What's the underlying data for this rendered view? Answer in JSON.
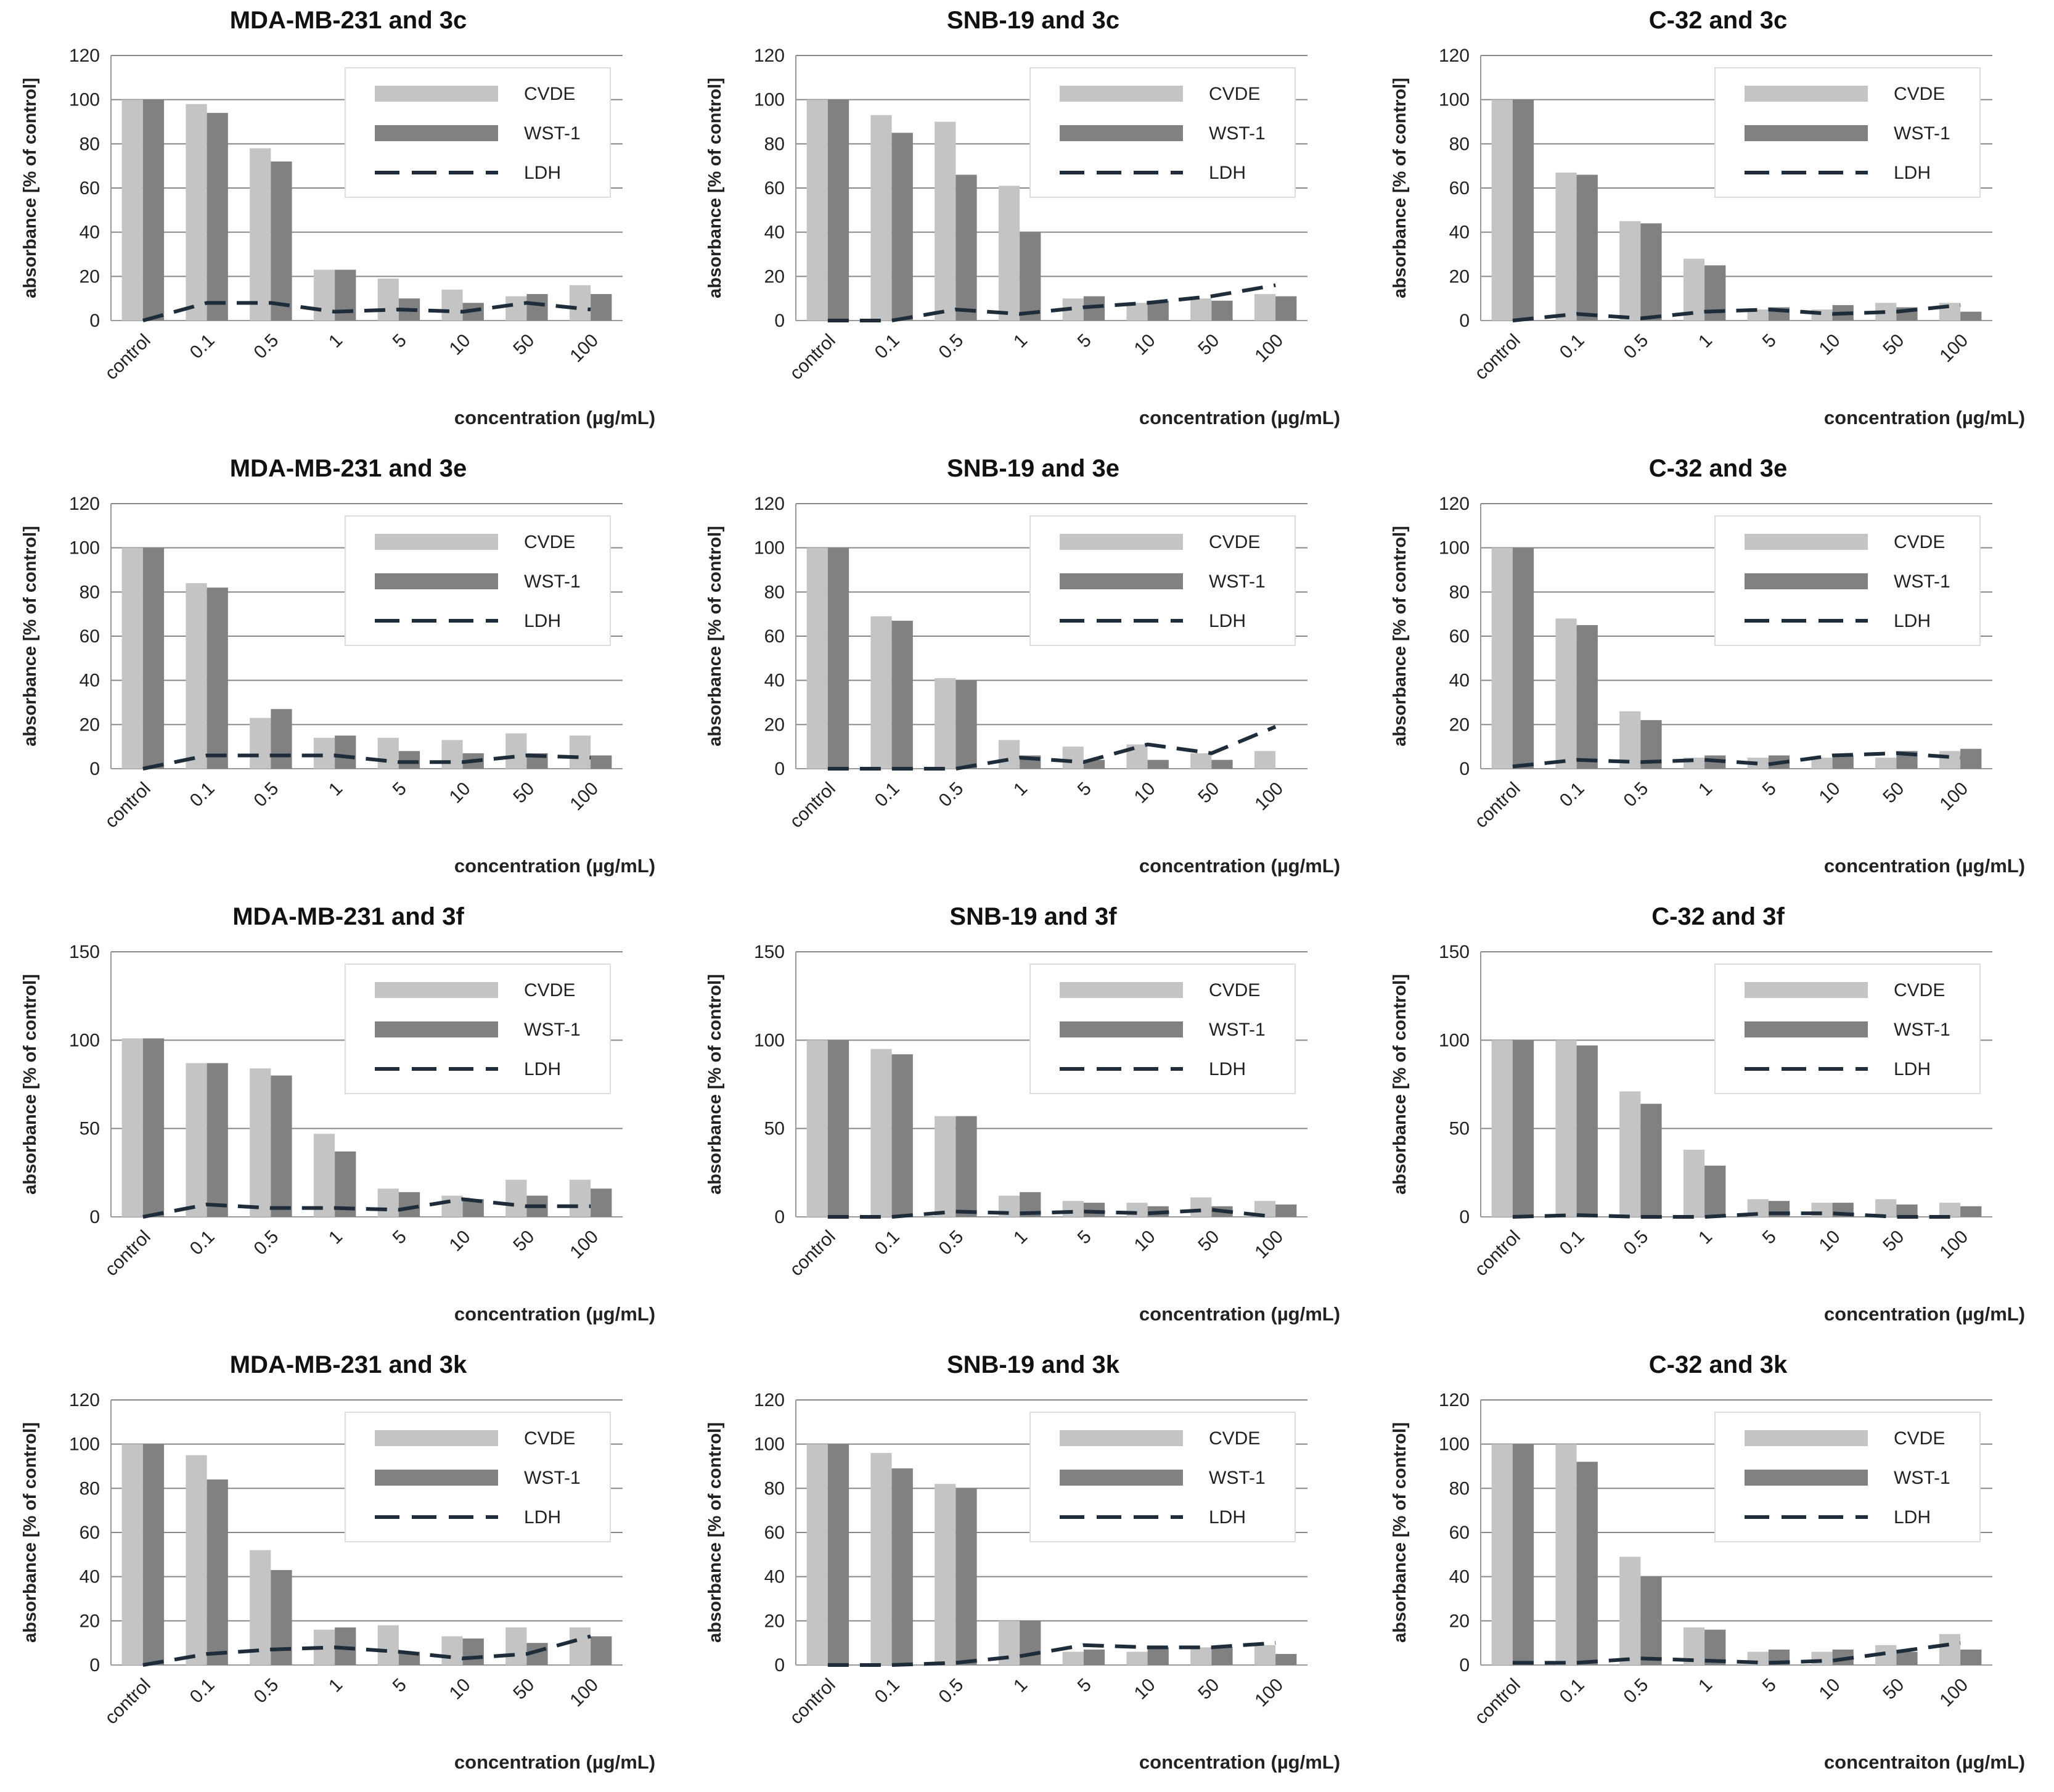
{
  "colors": {
    "cvde": "#c4c4c4",
    "wst1": "#818181",
    "ldh": "#1f2d3a",
    "grid": "#888888",
    "axis": "#999999"
  },
  "chart_data": [
    {
      "type": "bar",
      "title": "MDA-MB-231 and 3c",
      "categories": [
        "control",
        "0.1",
        "0.5",
        "1",
        "5",
        "10",
        "50",
        "100"
      ],
      "ylim": [
        0,
        120
      ],
      "yticks": [
        "0",
        "20",
        "40",
        "60",
        "80",
        "100",
        "120"
      ],
      "ytick_values": [
        0,
        20,
        40,
        60,
        80,
        100,
        120
      ],
      "xlabel": "concentration (µg/mL)",
      "ylabel": "absorbance [% of control]",
      "legend": [
        "CVDE",
        "WST-1",
        "LDH"
      ],
      "legend_position": "top-right",
      "series": [
        {
          "name": "CVDE",
          "kind": "bar",
          "values": [
            100,
            98,
            78,
            23,
            19,
            14,
            11,
            16
          ]
        },
        {
          "name": "WST-1",
          "kind": "bar",
          "values": [
            100,
            94,
            72,
            23,
            10,
            8,
            12,
            12
          ]
        },
        {
          "name": "LDH",
          "kind": "dashed-line",
          "values": [
            0,
            8,
            8,
            4,
            5,
            4,
            8,
            5
          ]
        }
      ]
    },
    {
      "type": "bar",
      "title": "SNB-19 and 3c",
      "categories": [
        "control",
        "0.1",
        "0.5",
        "1",
        "5",
        "10",
        "50",
        "100"
      ],
      "ylim": [
        0,
        120
      ],
      "yticks": [
        "0",
        "20",
        "40",
        "60",
        "80",
        "100",
        "120"
      ],
      "ytick_values": [
        0,
        20,
        40,
        60,
        80,
        100,
        120
      ],
      "xlabel": "concentration (µg/mL)",
      "ylabel": "absorbance [% of control]",
      "legend": [
        "CVDE",
        "WST-1",
        "LDH"
      ],
      "legend_position": "top-right",
      "series": [
        {
          "name": "CVDE",
          "kind": "bar",
          "values": [
            100,
            93,
            90,
            61,
            10,
            8,
            10,
            12
          ]
        },
        {
          "name": "WST-1",
          "kind": "bar",
          "values": [
            100,
            85,
            66,
            40,
            11,
            9,
            9,
            11
          ]
        },
        {
          "name": "LDH",
          "kind": "dashed-line",
          "values": [
            0,
            0,
            5,
            3,
            6,
            8,
            11,
            16
          ]
        }
      ]
    },
    {
      "type": "bar",
      "title": "C-32 and 3c",
      "categories": [
        "control",
        "0.1",
        "0.5",
        "1",
        "5",
        "10",
        "50",
        "100"
      ],
      "ylim": [
        0,
        120
      ],
      "yticks": [
        "0",
        "20",
        "40",
        "60",
        "80",
        "100",
        "120"
      ],
      "ytick_values": [
        0,
        20,
        40,
        60,
        80,
        100,
        120
      ],
      "xlabel": "concentration (µg/mL)",
      "ylabel": "absorbance [% of control]",
      "legend": [
        "CVDE",
        "WST-1",
        "LDH"
      ],
      "legend_position": "top-right",
      "series": [
        {
          "name": "CVDE",
          "kind": "bar",
          "values": [
            100,
            67,
            45,
            28,
            5,
            5,
            8,
            8
          ]
        },
        {
          "name": "WST-1",
          "kind": "bar",
          "values": [
            100,
            66,
            44,
            25,
            6,
            7,
            6,
            4
          ]
        },
        {
          "name": "LDH",
          "kind": "dashed-line",
          "values": [
            0,
            3,
            1,
            4,
            5,
            3,
            4,
            7
          ]
        }
      ]
    },
    {
      "type": "bar",
      "title": "MDA-MB-231 and 3e",
      "categories": [
        "control",
        "0.1",
        "0.5",
        "1",
        "5",
        "10",
        "50",
        "100"
      ],
      "ylim": [
        0,
        120
      ],
      "yticks": [
        "0",
        "20",
        "40",
        "60",
        "80",
        "100",
        "120"
      ],
      "ytick_values": [
        0,
        20,
        40,
        60,
        80,
        100,
        120
      ],
      "xlabel": "concentration (µg/mL)",
      "ylabel": "absorbance [% of control]",
      "legend": [
        "CVDE",
        "WST-1",
        "LDH"
      ],
      "legend_position": "top-right",
      "series": [
        {
          "name": "CVDE",
          "kind": "bar",
          "values": [
            100,
            84,
            23,
            14,
            14,
            13,
            16,
            15
          ]
        },
        {
          "name": "WST-1",
          "kind": "bar",
          "values": [
            100,
            82,
            27,
            15,
            8,
            7,
            7,
            6
          ]
        },
        {
          "name": "LDH",
          "kind": "dashed-line",
          "values": [
            0,
            6,
            6,
            6,
            3,
            3,
            6,
            5
          ]
        }
      ]
    },
    {
      "type": "bar",
      "title": "SNB-19 and 3e",
      "categories": [
        "control",
        "0.1",
        "0.5",
        "1",
        "5",
        "10",
        "50",
        "100"
      ],
      "ylim": [
        0,
        120
      ],
      "yticks": [
        "0",
        "20",
        "40",
        "60",
        "80",
        "100",
        "120"
      ],
      "ytick_values": [
        0,
        20,
        40,
        60,
        80,
        100,
        120
      ],
      "xlabel": "concentration (µg/mL)",
      "ylabel": "absorbance [% of control]",
      "legend": [
        "CVDE",
        "WST-1",
        "LDH"
      ],
      "legend_position": "top-right",
      "series": [
        {
          "name": "CVDE",
          "kind": "bar",
          "values": [
            100,
            69,
            41,
            13,
            10,
            11,
            7,
            8
          ]
        },
        {
          "name": "WST-1",
          "kind": "bar",
          "values": [
            100,
            67,
            40,
            6,
            4,
            4,
            4,
            0
          ]
        },
        {
          "name": "LDH",
          "kind": "dashed-line",
          "values": [
            0,
            0,
            0,
            5,
            3,
            11,
            7,
            19
          ]
        }
      ]
    },
    {
      "type": "bar",
      "title": "C-32 and 3e",
      "categories": [
        "control",
        "0.1",
        "0.5",
        "1",
        "5",
        "10",
        "50",
        "100"
      ],
      "ylim": [
        0,
        120
      ],
      "yticks": [
        "0",
        "20",
        "40",
        "60",
        "80",
        "100",
        "120"
      ],
      "ytick_values": [
        0,
        20,
        40,
        60,
        80,
        100,
        120
      ],
      "xlabel": "concentration (µg/mL)",
      "ylabel": "absorbance [% of control]",
      "legend": [
        "CVDE",
        "WST-1",
        "LDH"
      ],
      "legend_position": "top-right",
      "series": [
        {
          "name": "CVDE",
          "kind": "bar",
          "values": [
            100,
            68,
            26,
            5,
            5,
            5,
            5,
            8
          ]
        },
        {
          "name": "WST-1",
          "kind": "bar",
          "values": [
            100,
            65,
            22,
            6,
            6,
            6,
            8,
            9
          ]
        },
        {
          "name": "LDH",
          "kind": "dashed-line",
          "values": [
            1,
            4,
            3,
            4,
            2,
            6,
            7,
            5
          ]
        }
      ]
    },
    {
      "type": "bar",
      "title": "MDA-MB-231 and 3f",
      "categories": [
        "control",
        "0.1",
        "0.5",
        "1",
        "5",
        "10",
        "50",
        "100"
      ],
      "ylim": [
        0,
        150
      ],
      "yticks": [
        "0",
        "50",
        "100",
        "150"
      ],
      "ytick_values": [
        0,
        50,
        100,
        150
      ],
      "xlabel": "concentration (µg/mL)",
      "ylabel": "absorbance [% of control]",
      "legend": [
        "CVDE",
        "WST-1",
        "LDH"
      ],
      "legend_position": "top-right",
      "series": [
        {
          "name": "CVDE",
          "kind": "bar",
          "values": [
            101,
            87,
            84,
            47,
            16,
            12,
            21,
            21
          ]
        },
        {
          "name": "WST-1",
          "kind": "bar",
          "values": [
            101,
            87,
            80,
            37,
            14,
            10,
            12,
            16
          ]
        },
        {
          "name": "LDH",
          "kind": "dashed-line",
          "values": [
            0,
            7,
            5,
            5,
            4,
            10,
            6,
            6
          ]
        }
      ]
    },
    {
      "type": "bar",
      "title": "SNB-19 and 3f",
      "categories": [
        "control",
        "0.1",
        "0.5",
        "1",
        "5",
        "10",
        "50",
        "100"
      ],
      "ylim": [
        0,
        150
      ],
      "yticks": [
        "0",
        "50",
        "100",
        "150"
      ],
      "ytick_values": [
        0,
        50,
        100,
        150
      ],
      "xlabel": "concentration (µg/mL)",
      "ylabel": "absorbance [% of control]",
      "legend": [
        "CVDE",
        "WST-1",
        "LDH"
      ],
      "legend_position": "top-right",
      "series": [
        {
          "name": "CVDE",
          "kind": "bar",
          "values": [
            100,
            95,
            57,
            12,
            9,
            8,
            11,
            9
          ]
        },
        {
          "name": "WST-1",
          "kind": "bar",
          "values": [
            100,
            92,
            57,
            14,
            8,
            6,
            6,
            7
          ]
        },
        {
          "name": "LDH",
          "kind": "dashed-line",
          "values": [
            0,
            0,
            3,
            2,
            3,
            2,
            4,
            0
          ]
        }
      ]
    },
    {
      "type": "bar",
      "title": "C-32 and 3f",
      "categories": [
        "control",
        "0.1",
        "0.5",
        "1",
        "5",
        "10",
        "50",
        "100"
      ],
      "ylim": [
        0,
        150
      ],
      "yticks": [
        "0",
        "50",
        "100",
        "150"
      ],
      "ytick_values": [
        0,
        50,
        100,
        150
      ],
      "xlabel": "concentration (µg/mL)",
      "ylabel": "absorbance [% of control]",
      "legend": [
        "CVDE",
        "WST-1",
        "LDH"
      ],
      "legend_position": "top-right",
      "series": [
        {
          "name": "CVDE",
          "kind": "bar",
          "values": [
            100,
            100,
            71,
            38,
            10,
            8,
            10,
            8
          ]
        },
        {
          "name": "WST-1",
          "kind": "bar",
          "values": [
            100,
            97,
            64,
            29,
            9,
            8,
            7,
            6
          ]
        },
        {
          "name": "LDH",
          "kind": "dashed-line",
          "values": [
            0,
            1,
            0,
            0,
            2,
            2,
            0,
            0
          ]
        }
      ]
    },
    {
      "type": "bar",
      "title": "MDA-MB-231 and 3k",
      "categories": [
        "control",
        "0.1",
        "0.5",
        "1",
        "5",
        "10",
        "50",
        "100"
      ],
      "ylim": [
        0,
        120
      ],
      "yticks": [
        "0",
        "20",
        "40",
        "60",
        "80",
        "100",
        "120"
      ],
      "ytick_values": [
        0,
        20,
        40,
        60,
        80,
        100,
        120
      ],
      "xlabel": "concentration (µg/mL)",
      "ylabel": "absorbance [% of control]",
      "legend": [
        "CVDE",
        "WST-1",
        "LDH"
      ],
      "legend_position": "top-right",
      "series": [
        {
          "name": "CVDE",
          "kind": "bar",
          "values": [
            100,
            95,
            52,
            16,
            18,
            13,
            17,
            17
          ]
        },
        {
          "name": "WST-1",
          "kind": "bar",
          "values": [
            100,
            84,
            43,
            17,
            6,
            12,
            10,
            13
          ]
        },
        {
          "name": "LDH",
          "kind": "dashed-line",
          "values": [
            0,
            5,
            7,
            8,
            6,
            3,
            5,
            13
          ]
        }
      ]
    },
    {
      "type": "bar",
      "title": "SNB-19 and 3k",
      "categories": [
        "control",
        "0.1",
        "0.5",
        "1",
        "5",
        "10",
        "50",
        "100"
      ],
      "ylim": [
        0,
        120
      ],
      "yticks": [
        "0",
        "20",
        "40",
        "60",
        "80",
        "100",
        "120"
      ],
      "ytick_values": [
        0,
        20,
        40,
        60,
        80,
        100,
        120
      ],
      "xlabel": "concentration (µg/mL)",
      "ylabel": "absorbance [% of control]",
      "legend": [
        "CVDE",
        "WST-1",
        "LDH"
      ],
      "legend_position": "top-right",
      "series": [
        {
          "name": "CVDE",
          "kind": "bar",
          "values": [
            100,
            96,
            82,
            20,
            6,
            6,
            8,
            9
          ]
        },
        {
          "name": "WST-1",
          "kind": "bar",
          "values": [
            100,
            89,
            80,
            20,
            7,
            8,
            8,
            5
          ]
        },
        {
          "name": "LDH",
          "kind": "dashed-line",
          "values": [
            0,
            0,
            1,
            4,
            9,
            8,
            8,
            10
          ]
        }
      ]
    },
    {
      "type": "bar",
      "title": "C-32 and 3k",
      "categories": [
        "control",
        "0.1",
        "0.5",
        "1",
        "5",
        "10",
        "50",
        "100"
      ],
      "ylim": [
        0,
        120
      ],
      "yticks": [
        "0",
        "20",
        "40",
        "60",
        "80",
        "100",
        "120"
      ],
      "ytick_values": [
        0,
        20,
        40,
        60,
        80,
        100,
        120
      ],
      "xlabel": "concentraiton (µg/mL)",
      "ylabel": "absorbance [% of control]",
      "legend": [
        "CVDE",
        "WST-1",
        "LDH"
      ],
      "legend_position": "top-right",
      "series": [
        {
          "name": "CVDE",
          "kind": "bar",
          "values": [
            100,
            100,
            49,
            17,
            6,
            6,
            9,
            14
          ]
        },
        {
          "name": "WST-1",
          "kind": "bar",
          "values": [
            100,
            92,
            40,
            16,
            7,
            7,
            6,
            7
          ]
        },
        {
          "name": "LDH",
          "kind": "dashed-line",
          "values": [
            1,
            1,
            3,
            2,
            1,
            2,
            6,
            10
          ]
        }
      ]
    }
  ]
}
